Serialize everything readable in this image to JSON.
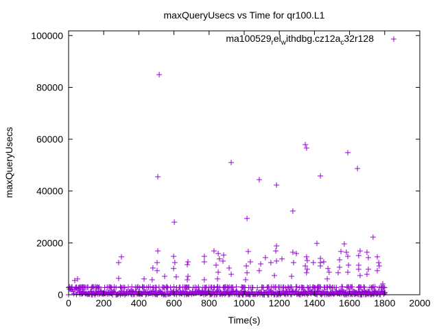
{
  "chart_data": {
    "type": "scatter",
    "title": "maxQueryUsecs vs Time for qr100.L1",
    "xlabel": "Time(s)",
    "ylabel": "maxQueryUsecs",
    "xlim": [
      0,
      2000
    ],
    "ylim": [
      0,
      101800
    ],
    "xticks": [
      0,
      200,
      400,
      600,
      800,
      1000,
      1200,
      1400,
      1600,
      1800,
      2000
    ],
    "yticks": [
      0,
      20000,
      40000,
      60000,
      80000,
      100000
    ],
    "xtick_labels": [
      "0",
      "200",
      "400",
      "600",
      "800",
      "1000",
      "1200",
      "1400",
      "1600",
      "1800",
      "2000"
    ],
    "ytick_labels": [
      "0",
      "20000",
      "40000",
      "60000",
      "80000",
      "100000"
    ],
    "grid": false,
    "legend_placement": "top-right",
    "series": [
      {
        "name": "ma100529_rel_withdbg.cz12a_c32r128",
        "legend_parts": [
          {
            "text": "ma100529",
            "sub": false
          },
          {
            "text": "r",
            "sub": true
          },
          {
            "text": "el",
            "sub": false
          },
          {
            "text": "w",
            "sub": true
          },
          {
            "text": "ithdbg.cz12a",
            "sub": false
          },
          {
            "text": "c",
            "sub": true
          },
          {
            "text": "32r128",
            "sub": false
          }
        ],
        "color": "#9400d3",
        "marker": "plus",
        "points": [
          [
            516,
            84900
          ],
          [
            508,
            45500
          ],
          [
            602,
            28000
          ],
          [
            926,
            51000
          ],
          [
            1016,
            29400
          ],
          [
            1086,
            44400
          ],
          [
            1184,
            42300
          ],
          [
            1277,
            32300
          ],
          [
            1348,
            57900
          ],
          [
            1355,
            56600
          ],
          [
            1434,
            45800
          ],
          [
            1590,
            54800
          ],
          [
            1645,
            48700
          ],
          [
            285,
            12400
          ],
          [
            301,
            14600
          ],
          [
            285,
            6300
          ],
          [
            508,
            16900
          ],
          [
            504,
            12400
          ],
          [
            504,
            9300
          ],
          [
            480,
            10300
          ],
          [
            547,
            7100
          ],
          [
            598,
            14800
          ],
          [
            605,
            12400
          ],
          [
            598,
            10100
          ],
          [
            613,
            6900
          ],
          [
            676,
            11600
          ],
          [
            680,
            12700
          ],
          [
            680,
            7100
          ],
          [
            676,
            5800
          ],
          [
            773,
            14800
          ],
          [
            773,
            12700
          ],
          [
            773,
            5800
          ],
          [
            828,
            16900
          ],
          [
            852,
            15900
          ],
          [
            883,
            15300
          ],
          [
            859,
            13800
          ],
          [
            879,
            13000
          ],
          [
            840,
            11400
          ],
          [
            852,
            8700
          ],
          [
            848,
            6100
          ],
          [
            914,
            10300
          ],
          [
            926,
            7900
          ],
          [
            1012,
            11100
          ],
          [
            1023,
            16700
          ],
          [
            1035,
            12700
          ],
          [
            1016,
            8500
          ],
          [
            1008,
            5800
          ],
          [
            1086,
            9300
          ],
          [
            1094,
            11900
          ],
          [
            1121,
            14300
          ],
          [
            1152,
            12400
          ],
          [
            1180,
            16900
          ],
          [
            1184,
            18800
          ],
          [
            1184,
            13000
          ],
          [
            1215,
            13800
          ],
          [
            1172,
            7400
          ],
          [
            1277,
            16400
          ],
          [
            1297,
            15900
          ],
          [
            1281,
            12400
          ],
          [
            1270,
            7100
          ],
          [
            1414,
            19800
          ],
          [
            1355,
            14600
          ],
          [
            1359,
            13200
          ],
          [
            1348,
            11100
          ],
          [
            1359,
            9800
          ],
          [
            1355,
            8500
          ],
          [
            1394,
            12400
          ],
          [
            1434,
            14000
          ],
          [
            1434,
            12400
          ],
          [
            1453,
            12700
          ],
          [
            1434,
            11100
          ],
          [
            1477,
            10100
          ],
          [
            1484,
            8700
          ],
          [
            1473,
            6100
          ],
          [
            1570,
            19600
          ],
          [
            1582,
            16400
          ],
          [
            1551,
            16700
          ],
          [
            1543,
            13500
          ],
          [
            1543,
            10600
          ],
          [
            1535,
            8500
          ],
          [
            1590,
            14800
          ],
          [
            1594,
            11400
          ],
          [
            1590,
            8700
          ],
          [
            1652,
            15100
          ],
          [
            1660,
            16900
          ],
          [
            1652,
            11400
          ],
          [
            1652,
            9800
          ],
          [
            1660,
            7400
          ],
          [
            1699,
            16400
          ],
          [
            1707,
            14300
          ],
          [
            1707,
            9800
          ],
          [
            1699,
            7900
          ],
          [
            1734,
            22200
          ],
          [
            1758,
            14600
          ],
          [
            1766,
            12400
          ],
          [
            1758,
            9300
          ],
          [
            1769,
            11100
          ],
          [
            1789,
            4200
          ],
          [
            35,
            5500
          ],
          [
            51,
            6100
          ],
          [
            430,
            6100
          ],
          [
            476,
            5800
          ]
        ],
        "dense_band": {
          "x_range": [
            0,
            1800
          ],
          "y_range": [
            0,
            1500
          ],
          "upper_row_y": 2900,
          "interval_s": 5
        }
      }
    ]
  }
}
